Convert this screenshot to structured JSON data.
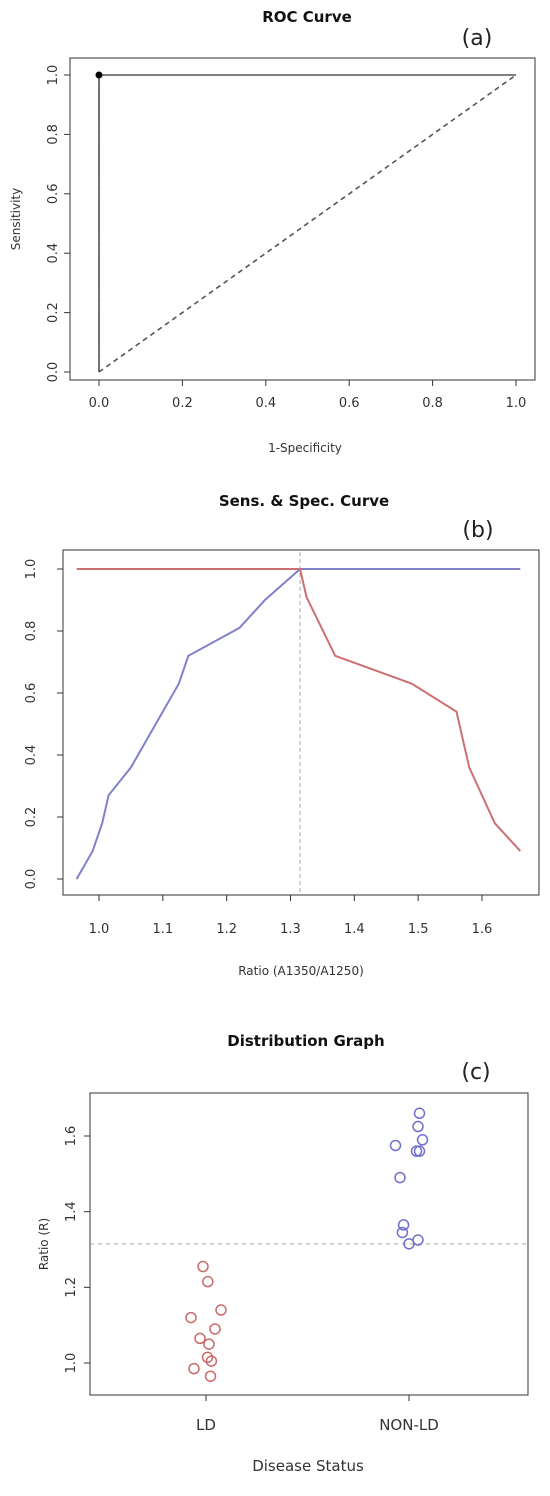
{
  "chart_data": [
    {
      "type": "line",
      "title": "ROC Curve",
      "panel_label": "(a)",
      "xlabel": "1-Specificity",
      "ylabel": "Sensitivity",
      "xlim": [
        0,
        1
      ],
      "ylim": [
        0,
        1
      ],
      "x_ticks": [
        "0.0",
        "0.2",
        "0.4",
        "0.6",
        "0.8",
        "1.0"
      ],
      "y_ticks": [
        "0.0",
        "0.2",
        "0.4",
        "0.6",
        "0.8",
        "1.0"
      ],
      "series": [
        {
          "points": [
            [
              0,
              0
            ],
            [
              0,
              1
            ],
            [
              1,
              1
            ]
          ],
          "style": "solid",
          "color": "#555555"
        },
        {
          "points": [
            [
              0,
              0
            ],
            [
              1,
              1
            ]
          ],
          "style": "dashed",
          "color": "#555555"
        }
      ],
      "marker": {
        "x": 0,
        "y": 1,
        "color": "#000000"
      },
      "reference_line": {
        "x": 0,
        "from": 0,
        "to": 1,
        "style": "dashed"
      },
      "grid": false
    },
    {
      "type": "line",
      "title": "Sens. & Spec. Curve",
      "panel_label": "(b)",
      "xlabel": "Ratio (A1350/A1250)",
      "ylabel": "",
      "xlim": [
        0.95,
        1.67
      ],
      "ylim": [
        0,
        1
      ],
      "x_ticks": [
        "1.0",
        "1.1",
        "1.2",
        "1.3",
        "1.4",
        "1.5",
        "1.6"
      ],
      "y_ticks": [
        "0.0",
        "0.2",
        "0.4",
        "0.6",
        "0.8",
        "1.0"
      ],
      "series": [
        {
          "color": "#8080cc",
          "points": [
            [
              0.965,
              0
            ],
            [
              0.99,
              0.09
            ],
            [
              1.005,
              0.18
            ],
            [
              1.015,
              0.27
            ],
            [
              1.05,
              0.36
            ],
            [
              1.075,
              0.45
            ],
            [
              1.1,
              0.54
            ],
            [
              1.125,
              0.63
            ],
            [
              1.14,
              0.72
            ],
            [
              1.22,
              0.81
            ],
            [
              1.26,
              0.9
            ],
            [
              1.315,
              1.0
            ],
            [
              1.66,
              1.0
            ]
          ]
        },
        {
          "color": "#cc7070",
          "points": [
            [
              0.965,
              1.0
            ],
            [
              1.315,
              1.0
            ],
            [
              1.325,
              0.91
            ],
            [
              1.37,
              0.72
            ],
            [
              1.49,
              0.63
            ],
            [
              1.56,
              0.54
            ],
            [
              1.58,
              0.36
            ],
            [
              1.6,
              0.27
            ],
            [
              1.62,
              0.18
            ],
            [
              1.66,
              0.09
            ]
          ]
        }
      ],
      "cutoff": {
        "x": 1.315,
        "style": "dashed"
      },
      "grid": false
    },
    {
      "type": "scatter",
      "title": "Distribution Graph",
      "panel_label": "(c)",
      "xlabel": "Disease Status",
      "ylabel": "Ratio (R)",
      "categories": [
        "LD",
        "NON-LD"
      ],
      "ylim": [
        0.94,
        1.72
      ],
      "y_ticks": [
        "1.0",
        "1.2",
        "1.4",
        "1.6"
      ],
      "cutoff": {
        "y": 1.315,
        "style": "dashed"
      },
      "series": [
        {
          "category": "LD",
          "color": "#cc6a6a",
          "values": [
            1.255,
            1.215,
            1.14,
            1.12,
            1.09,
            1.065,
            1.05,
            1.015,
            1.005,
            0.985,
            0.965
          ],
          "jitter": [
            -0.1,
            0.06,
            0.5,
            -0.5,
            0.3,
            -0.2,
            0.1,
            0.05,
            0.18,
            -0.4,
            0.15
          ]
        },
        {
          "category": "NON-LD",
          "color": "#7070cc",
          "values": [
            1.66,
            1.625,
            1.59,
            1.575,
            1.56,
            1.56,
            1.49,
            1.365,
            1.345,
            1.325,
            1.315
          ],
          "jitter": [
            0.35,
            0.3,
            0.45,
            -0.45,
            0.25,
            0.35,
            -0.3,
            -0.18,
            -0.22,
            0.3,
            0.0
          ]
        }
      ],
      "grid": false
    }
  ]
}
